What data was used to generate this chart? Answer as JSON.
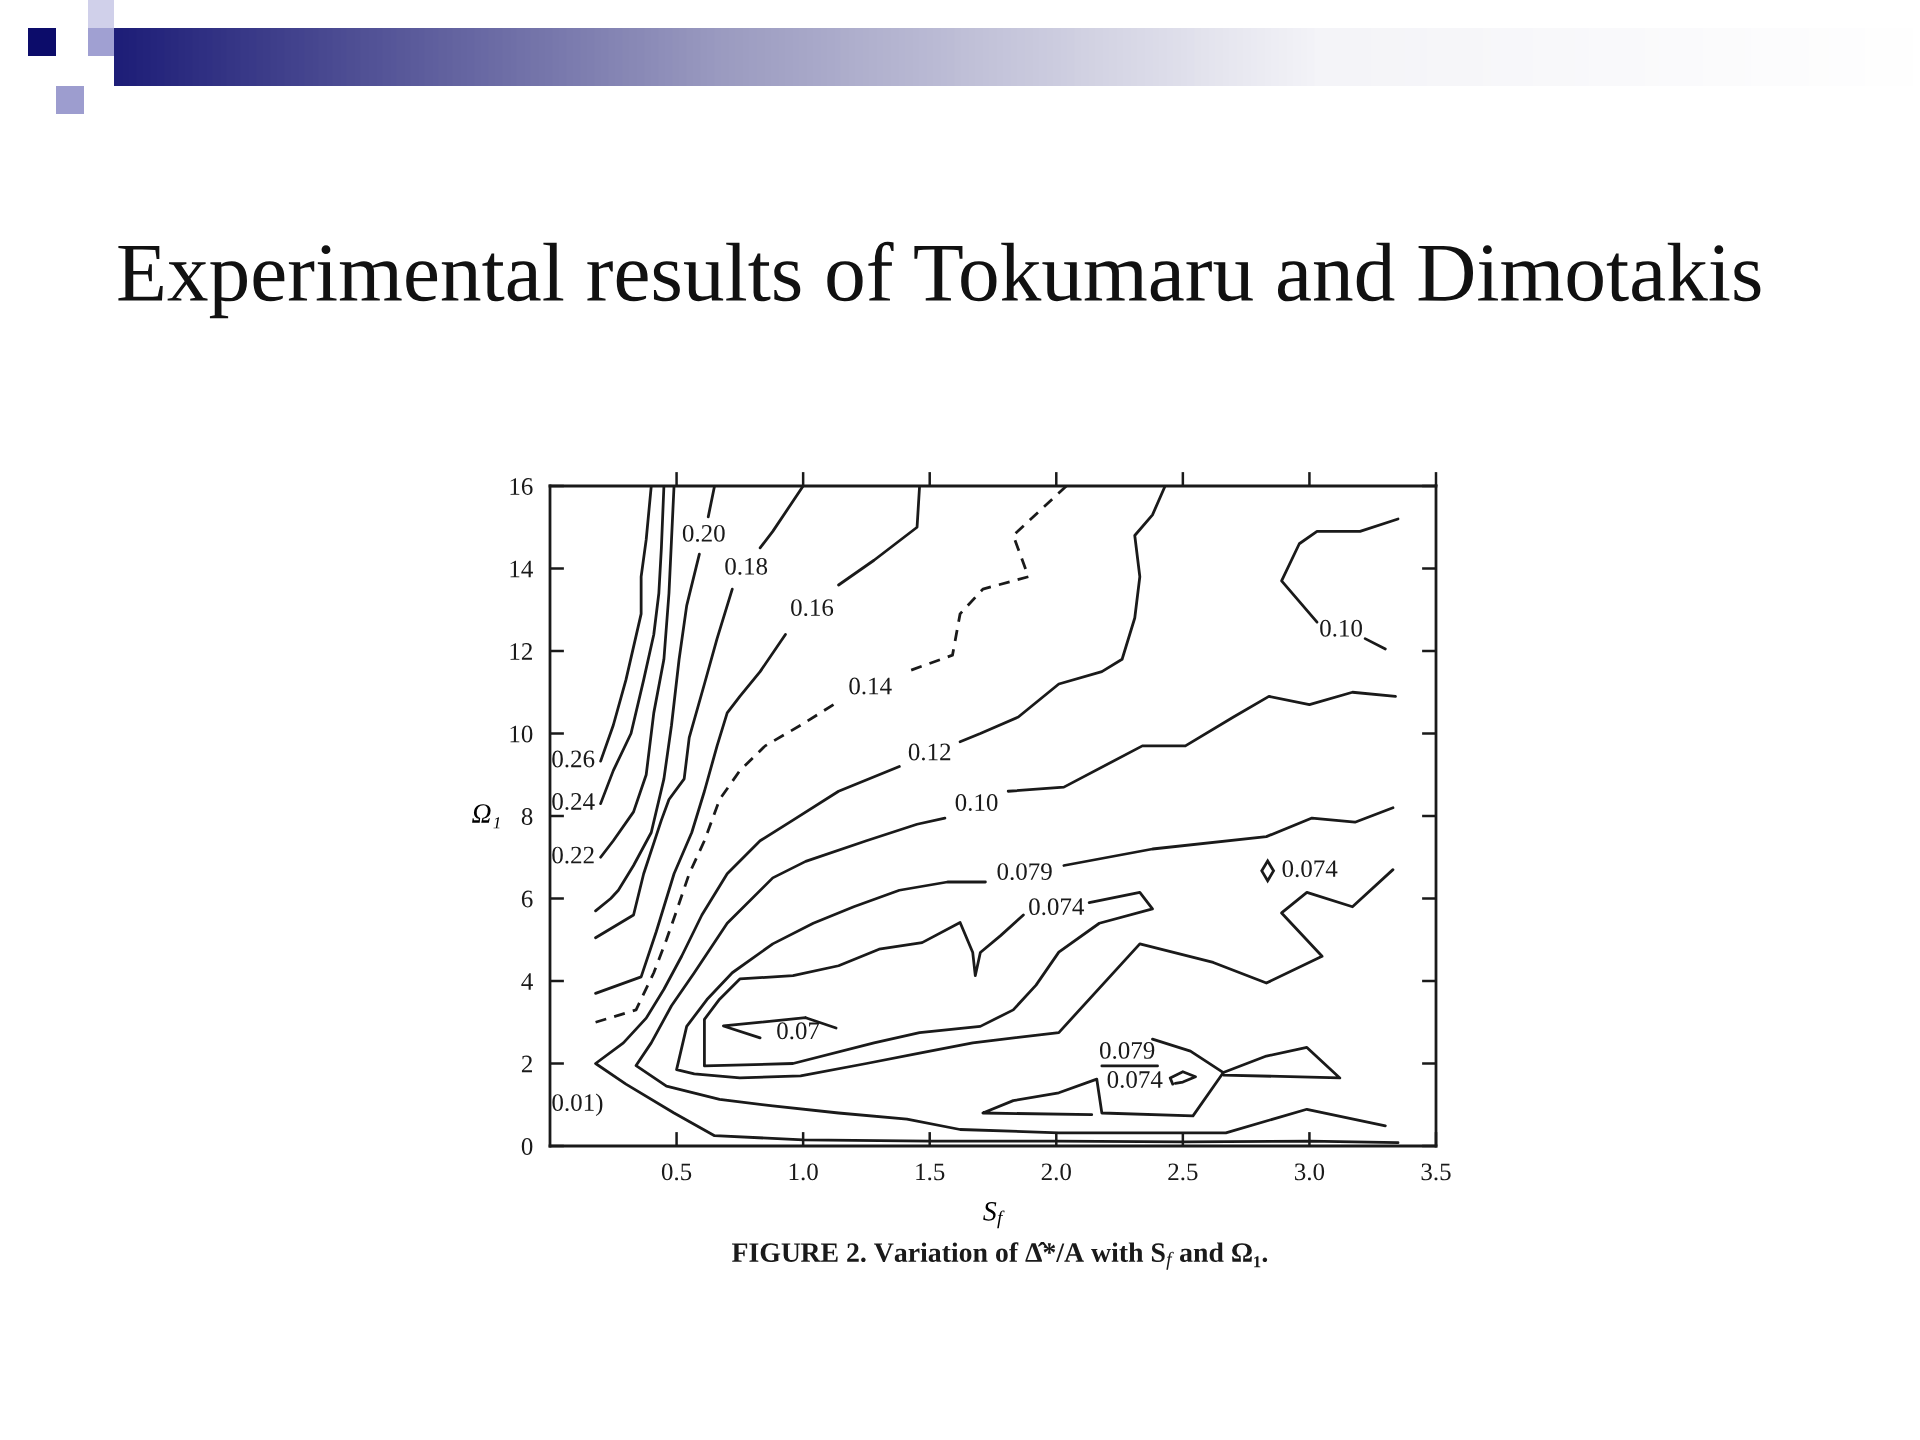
{
  "chart_data": {
    "type": "line",
    "title": "Experimental results of Tokumaru and Dimotakis",
    "xlabel": "S$_{f}$",
    "ylabel": "Ω₁",
    "xlim": [
      0,
      3.5
    ],
    "ylim": [
      0,
      16
    ],
    "xticks": [
      0.5,
      {
        "value": 1,
        "label": "1.0"
      },
      1.5,
      {
        "value": 2,
        "label": "2.0"
      },
      2.5,
      {
        "value": 3,
        "label": "3.0"
      },
      3.5
    ],
    "yticks": [
      0,
      2,
      4,
      6,
      8,
      10,
      12,
      14,
      16
    ],
    "line_style": "solid",
    "series": [
      {
        "name": "0.26",
        "color": "#1a1a1a",
        "x": [
          0.2,
          0.25,
          0.3,
          0.33,
          0.36,
          0.36,
          0.38,
          0.4
        ],
        "values": [
          9.33,
          10.2,
          11.3,
          12.1,
          12.9,
          13.8,
          14.7,
          16
        ]
      },
      {
        "name": "0.24",
        "color": "#1a1a1a",
        "x": [
          0.2,
          0.25,
          0.32,
          0.37,
          0.41,
          0.43,
          0.44,
          0.45
        ],
        "values": [
          8.3,
          9.1,
          10.0,
          11.3,
          12.4,
          13.4,
          14.5,
          16
        ]
      },
      {
        "name": "0.22",
        "color": "#1a1a1a",
        "x": [
          0.2,
          0.25,
          0.33,
          0.38,
          0.41,
          0.45,
          0.47,
          0.48,
          0.49
        ],
        "values": [
          7.0,
          7.4,
          8.1,
          9.0,
          10.5,
          11.8,
          13.4,
          14.7,
          16
        ]
      },
      {
        "name": "0.20",
        "color": "#1a1a1a",
        "x": [
          0.65,
          0.625,
          0.61,
          0.59,
          0.54,
          0.51,
          0.48,
          0.45,
          0.4,
          0.33,
          0.27,
          0.24,
          0.18
        ],
        "values": [
          16,
          15.25,
          null,
          14.35,
          13.1,
          11.8,
          10.2,
          8.9,
          7.6,
          6.8,
          6.2,
          6.0,
          5.7
        ]
      },
      {
        "name": "0.18",
        "color": "#1a1a1a",
        "x": [
          1.0,
          0.88,
          0.83,
          0.78,
          0.72,
          0.66,
          0.61,
          0.55,
          0.53,
          0.47,
          0.44,
          0.37,
          0.33,
          0.18
        ],
        "values": [
          16,
          14.9,
          14.5,
          null,
          13.5,
          12.3,
          11.2,
          9.9,
          8.9,
          8.4,
          7.9,
          6.6,
          5.6,
          5.05
        ]
      },
      {
        "name": "0.16",
        "color": "#1a1a1a",
        "x": [
          1.46,
          1.45,
          1.28,
          1.14,
          1.04,
          0.93,
          0.83,
          0.75,
          0.7,
          0.66,
          0.61,
          0.56,
          0.49,
          0.42,
          0.36,
          0.18
        ],
        "values": [
          16,
          15.0,
          14.2,
          13.6,
          null,
          12.4,
          11.5,
          10.9,
          10.5,
          9.7,
          8.6,
          7.6,
          6.6,
          5.2,
          4.1,
          3.7
        ]
      },
      {
        "name": "0.14",
        "color": "#1a1a1a",
        "line_style": "dashed",
        "x": [
          2.04,
          1.83,
          1.89,
          1.71,
          1.62,
          1.59,
          1.41,
          1.27,
          1.12,
          0.99,
          0.85,
          0.75,
          0.67,
          0.61,
          0.55,
          0.5,
          0.46,
          0.41,
          0.34,
          0.18
        ],
        "values": [
          16,
          14.8,
          13.8,
          13.5,
          12.9,
          11.9,
          11.5,
          null,
          10.7,
          10.2,
          9.7,
          9.1,
          8.4,
          7.4,
          6.6,
          5.7,
          5.0,
          4.2,
          3.3,
          3.0
        ]
      },
      {
        "name": "0.12",
        "color": "#1a1a1a",
        "x": [
          2.43,
          2.38,
          2.31,
          2.33,
          2.31,
          2.26,
          2.18,
          2.01,
          1.85,
          1.7,
          1.62,
          1.5,
          1.38,
          1.14,
          0.96,
          0.83,
          0.7,
          0.6,
          0.52,
          0.45,
          0.38,
          0.29,
          0.18,
          0.3,
          0.49,
          0.65,
          1.0,
          1.5,
          2.0,
          2.5,
          3.0,
          3.35
        ],
        "values": [
          16,
          15.3,
          14.8,
          13.8,
          12.8,
          11.8,
          11.5,
          11.2,
          10.4,
          10.0,
          9.8,
          null,
          9.2,
          8.6,
          7.9,
          7.4,
          6.6,
          5.6,
          4.6,
          3.8,
          3.1,
          2.5,
          2.0,
          1.5,
          0.8,
          0.25,
          0.15,
          0.12,
          0.12,
          0.1,
          0.12,
          0.08
        ]
      },
      {
        "name": "0.10",
        "color": "#1a1a1a",
        "x": [
          3.35,
          3.2,
          3.03,
          2.96,
          2.89,
          3.03,
          3.12,
          3.22,
          3.3
        ],
        "values": [
          15.2,
          14.9,
          14.9,
          14.6,
          13.7,
          12.7,
          null,
          12.3,
          12.05
        ]
      },
      {
        "name": "0.10",
        "color": "#1a1a1a",
        "x": [
          3.34,
          3.17,
          3.0,
          2.84,
          2.7,
          2.51,
          2.34,
          2.03,
          1.81,
          1.68,
          1.56,
          1.45,
          1.25,
          1.01,
          0.88,
          0.7,
          0.57,
          0.48,
          0.4,
          0.34,
          0.46,
          0.67,
          0.88,
          1.14,
          1.41,
          1.62,
          2.01,
          2.67,
          2.99,
          3.3
        ],
        "values": [
          10.9,
          11.0,
          10.7,
          10.9,
          10.4,
          9.7,
          9.7,
          8.7,
          8.6,
          null,
          7.95,
          7.8,
          7.4,
          6.9,
          6.5,
          5.4,
          4.2,
          3.4,
          2.5,
          1.95,
          1.45,
          1.13,
          0.97,
          0.8,
          0.65,
          0.4,
          0.32,
          0.32,
          0.89,
          0.49
        ]
      },
      {
        "name": "0.079",
        "color": "#1a1a1a",
        "x": [
          3.33,
          3.18,
          3.01,
          2.83,
          2.38,
          2.03,
          1.88,
          1.72,
          1.57,
          1.38,
          1.2,
          1.04,
          0.88,
          0.72,
          0.62,
          0.54,
          0.5,
          0.57,
          0.75,
          0.99,
          1.25,
          1.46,
          1.67,
          2.01,
          2.33,
          2.62,
          2.83,
          3.05,
          2.89,
          2.99,
          3.17,
          3.33
        ],
        "values": [
          8.2,
          7.85,
          7.95,
          7.5,
          7.2,
          6.8,
          null,
          6.4,
          6.4,
          6.2,
          5.8,
          5.4,
          4.9,
          4.2,
          3.55,
          2.9,
          1.85,
          1.75,
          1.65,
          1.7,
          2.0,
          2.25,
          2.5,
          2.75,
          4.9,
          4.45,
          3.95,
          4.6,
          5.65,
          6.15,
          5.8,
          6.7
        ]
      },
      {
        "name": "0.074",
        "color": "#1a1a1a",
        "x": [
          1.87,
          2.0,
          2.13,
          2.33,
          2.38,
          2.17,
          2.01,
          1.92,
          1.83,
          1.7,
          1.46,
          1.28,
          0.96,
          0.61,
          0.61,
          0.67,
          0.75,
          0.96,
          1.14,
          1.3,
          1.47,
          1.62,
          1.67,
          1.68,
          1.7,
          1.78,
          1.87
        ],
        "values": [
          5.6,
          null,
          5.9,
          6.15,
          5.75,
          5.4,
          4.7,
          3.9,
          3.3,
          2.9,
          2.75,
          2.5,
          2.0,
          1.94,
          3.07,
          3.56,
          4.05,
          4.13,
          4.37,
          4.77,
          4.93,
          5.42,
          4.69,
          4.13,
          4.69,
          5.1,
          5.6
        ]
      },
      {
        "name": "0.07",
        "color": "#1a1a1a",
        "x": [
          1.01,
          0.685,
          0.83,
          0.98,
          1.13,
          1.01
        ],
        "values": [
          3.11,
          2.91,
          2.62,
          null,
          2.86,
          3.11
        ]
      },
      {
        "name": "0.074",
        "type": "scatter",
        "marker": "diamond",
        "color": "#1a1a1a",
        "x": [
          2.835
        ],
        "values": [
          6.67
        ]
      },
      {
        "name": "0.079",
        "color": "#1a1a1a",
        "x": [
          2.4,
          2.18,
          2.28,
          2.38,
          2.53,
          2.66,
          2.83,
          2.99,
          3.12,
          2.66
        ],
        "values": [
          1.94,
          1.94,
          null,
          2.59,
          2.3,
          1.78,
          2.18,
          2.39,
          1.65,
          1.72
        ]
      },
      {
        "name": "0.074",
        "color": "#1a1a1a",
        "x": [
          2.14,
          1.71,
          1.83,
          2.01,
          2.16,
          2.31,
          2.46,
          2.45,
          2.5,
          2.55,
          2.5,
          2.47,
          2.31,
          2.16,
          2.18,
          2.54,
          2.66
        ],
        "values": [
          0.76,
          0.8,
          1.1,
          1.29,
          1.62,
          null,
          1.5,
          1.65,
          1.8,
          1.68,
          1.55,
          1.52,
          null,
          1.62,
          0.8,
          0.73,
          1.78
        ]
      }
    ],
    "annotations": [
      "0.01)",
      "FIGURE 2. Variation of Δ̂*/A with S$_{f}$ and Ω₁."
    ]
  }
}
